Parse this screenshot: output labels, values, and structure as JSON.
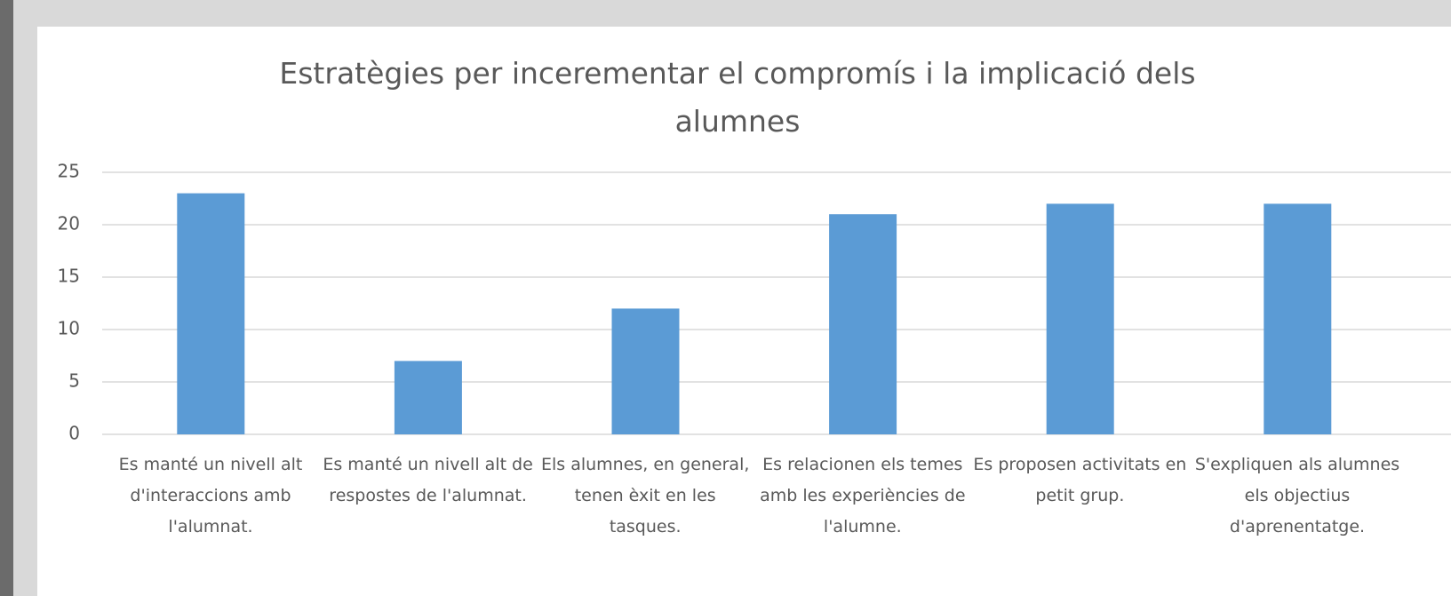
{
  "chart_data": {
    "type": "bar",
    "title": "Estratègies per incerementar el compromís i la implicació dels alumnes",
    "categories": [
      "Es manté un nivell alt d'interaccions amb l'alumnat.",
      "Es manté un nivell alt de respostes de l'alumnat.",
      "Els alumnes, en general, tenen èxit en les tasques.",
      "Es relacionen els temes amb les experiències de l'alumne.",
      "Es proposen activitats en petit grup.",
      "S'expliquen als alumnes els objectius d'aprenentatge."
    ],
    "values": [
      23,
      7,
      12,
      21,
      22,
      22
    ],
    "color": "#5b9bd5",
    "ylim": [
      0,
      25
    ],
    "yticks": [
      0,
      5,
      10,
      15,
      20,
      25
    ],
    "grid": true
  }
}
